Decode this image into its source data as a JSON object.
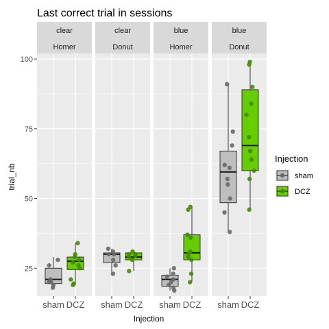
{
  "chart_data": {
    "type": "boxplot",
    "title": "Last correct trial in sessions",
    "xlabel": "Injection",
    "ylabel": "trial_nb",
    "ylim": [
      15,
      102
    ],
    "yticks": [
      25,
      50,
      75,
      100
    ],
    "categories": [
      "sham",
      "DCZ"
    ],
    "colors": {
      "sham_fill": "#bebebe",
      "sham_point": "#696969",
      "DCZ_fill": "#66cd00",
      "DCZ_point": "#458b00",
      "panel_bg": "#ebebeb",
      "strip_bg": "#d9d9d9",
      "grid": "#ffffff"
    },
    "legend": {
      "title": "Injection",
      "position": "right",
      "entries": [
        "sham",
        "DCZ"
      ]
    },
    "panels": [
      {
        "strip": [
          "clear",
          "Homer"
        ],
        "series": [
          {
            "name": "sham",
            "box": {
              "lower_whisker": 18,
              "q1": 19.5,
              "median": 21,
              "q3": 25,
              "upper_whisker": 29
            },
            "points": [
              18,
              19,
              20,
              20,
              21,
              26,
              28
            ]
          },
          {
            "name": "DCZ",
            "box": {
              "lower_whisker": 19,
              "q1": 24.5,
              "median": 27.5,
              "q3": 29,
              "upper_whisker": 34
            },
            "points": [
              19,
              19.5,
              21,
              25,
              26,
              27,
              28,
              29,
              30,
              34
            ]
          }
        ]
      },
      {
        "strip": [
          "clear",
          "Donut"
        ],
        "series": [
          {
            "name": "sham",
            "box": {
              "lower_whisker": 23,
              "q1": 27,
              "median": 30,
              "q3": 30.5,
              "upper_whisker": 32
            },
            "points": [
              23,
              26,
              28,
              30,
              30,
              31,
              32
            ]
          },
          {
            "name": "DCZ",
            "box": {
              "lower_whisker": 24,
              "q1": 28,
              "median": 29,
              "q3": 30.5,
              "upper_whisker": 31
            },
            "points": [
              24,
              28,
              29,
              29.5,
              30,
              30,
              31
            ]
          }
        ]
      },
      {
        "strip": [
          "blue",
          "Homer"
        ],
        "series": [
          {
            "name": "sham",
            "box": {
              "lower_whisker": 17,
              "q1": 18.5,
              "median": 21,
              "q3": 22.5,
              "upper_whisker": 25
            },
            "points": [
              17,
              18,
              19,
              20,
              21,
              22,
              23,
              25
            ]
          },
          {
            "name": "DCZ",
            "box": {
              "lower_whisker": 20,
              "q1": 28,
              "median": 30.5,
              "q3": 37,
              "upper_whisker": 47
            },
            "points": [
              20,
              23,
              28,
              29,
              30,
              31,
              36,
              37,
              46,
              47
            ]
          }
        ]
      },
      {
        "strip": [
          "blue",
          "Donut"
        ],
        "series": [
          {
            "name": "sham",
            "box": {
              "lower_whisker": 38,
              "q1": 48.5,
              "median": 59.5,
              "q3": 67,
              "upper_whisker": 91
            },
            "points": [
              38,
              45,
              50,
              55,
              57,
              61,
              62,
              69,
              74,
              91
            ]
          },
          {
            "name": "DCZ",
            "box": {
              "lower_whisker": 46,
              "q1": 60,
              "median": 69,
              "q3": 89,
              "upper_whisker": 99
            },
            "points": [
              46,
              57,
              60,
              64,
              67,
              72,
              80,
              84,
              90,
              98,
              99
            ]
          }
        ]
      }
    ]
  }
}
